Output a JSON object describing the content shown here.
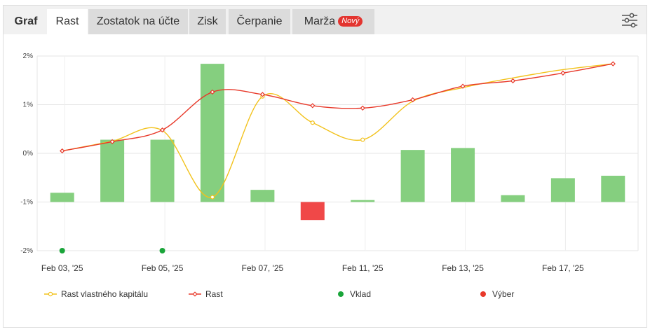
{
  "tabs": [
    {
      "label": "Graf",
      "badge": ""
    },
    {
      "label": "Rast",
      "badge": ""
    },
    {
      "label": "Zostatok na účte",
      "badge": ""
    },
    {
      "label": "Zisk",
      "badge": ""
    },
    {
      "label": "Čerpanie",
      "badge": ""
    },
    {
      "label": "Marža",
      "badge": "Nový"
    }
  ],
  "active_tab": "Rast",
  "icons": {
    "settings": "sliders-icon"
  },
  "colors": {
    "positive_bar": "#85cf7f",
    "negative_bar": "#f04848",
    "equity_line": "#f2c21c",
    "growth_line": "#e8392a",
    "deposit": "#1aa53a",
    "withdrawal": "#e8392a"
  },
  "chart_data": {
    "type": "bar",
    "x_tick_labels": [
      "Feb 03, '25",
      "Feb 05, '25",
      "Feb 07, '25",
      "Feb 11, '25",
      "Feb 13, '25",
      "Feb 17, '25"
    ],
    "ylim": [
      -2,
      2
    ],
    "y_ticks": [
      "2%",
      "1%",
      "0%",
      "-1%",
      "-2%"
    ],
    "grid": true,
    "legend_position": "bottom",
    "n_points": 12,
    "bars": [
      0.19,
      1.28,
      1.28,
      2.84,
      0.25,
      -0.37,
      0.04,
      1.07,
      1.11,
      0.14,
      0.49,
      0.54
    ],
    "series": [
      {
        "name": "Rast vlastného kapitálu",
        "type": "line",
        "values": [
          0.05,
          0.25,
          0.47,
          -0.9,
          1.17,
          0.63,
          0.28,
          1.07,
          1.35,
          1.55,
          1.72,
          1.84
        ]
      },
      {
        "name": "Rast",
        "type": "line",
        "values": [
          0.05,
          0.24,
          0.48,
          1.26,
          1.21,
          0.98,
          0.93,
          1.1,
          1.38,
          1.49,
          1.65,
          1.84
        ]
      },
      {
        "name": "Vklad",
        "type": "scatter",
        "points": [
          [
            0,
            -2
          ],
          [
            2,
            -2
          ]
        ]
      },
      {
        "name": "Výber",
        "type": "scatter",
        "points": []
      }
    ]
  }
}
